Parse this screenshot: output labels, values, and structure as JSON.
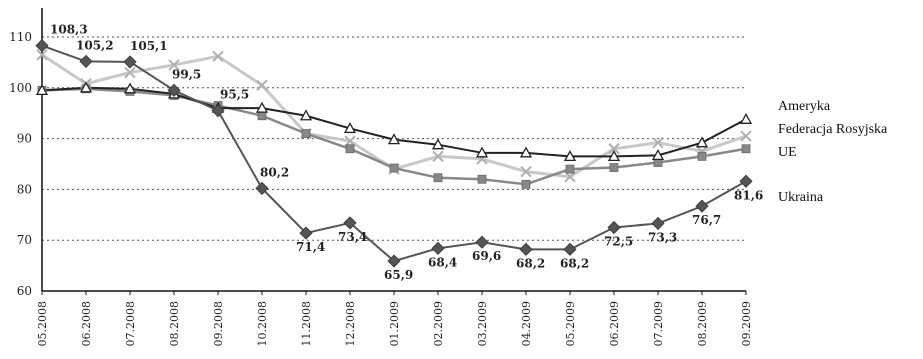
{
  "chart_data": {
    "type": "line",
    "title": "",
    "xlabel": "",
    "ylabel": "",
    "ylim": [
      60,
      115
    ],
    "yticks": [
      60,
      70,
      80,
      90,
      100,
      110
    ],
    "grid": "horizontal-dotted",
    "legend": "right",
    "categories": [
      "05.2008",
      "06.2008",
      "07.2008",
      "08.2008",
      "09.2008",
      "10.2008",
      "11.2008",
      "12.2008",
      "01.2009",
      "02.2009",
      "03.2009",
      "04.2009",
      "05.2009",
      "06.2009",
      "07.2009",
      "08.2009",
      "09.2009"
    ],
    "series": [
      {
        "name": "Ameryka",
        "color": "#222222",
        "marker": "triangle",
        "values": [
          99.5,
          100.0,
          99.8,
          98.8,
          96.0,
          96.0,
          94.5,
          92.0,
          89.8,
          88.8,
          87.2,
          87.2,
          86.5,
          86.5,
          86.7,
          89.2,
          93.8
        ]
      },
      {
        "name": "Federacja Rosyjska",
        "color": "#c8c8c8",
        "marker": "x",
        "values": [
          106.5,
          100.8,
          103.0,
          104.5,
          106.2,
          100.5,
          91.0,
          89.5,
          84.0,
          86.5,
          86.0,
          83.5,
          82.5,
          88.0,
          89.2,
          87.5,
          90.5
        ]
      },
      {
        "name": "UE",
        "color": "#888888",
        "marker": "square",
        "values": [
          99.5,
          99.8,
          99.3,
          98.5,
          96.5,
          94.5,
          91.0,
          88.0,
          84.2,
          82.3,
          82.0,
          81.0,
          84.0,
          84.3,
          85.3,
          86.5,
          88.0
        ]
      },
      {
        "name": "Ukraina",
        "color": "#555555",
        "marker": "diamond",
        "values": [
          108.3,
          105.2,
          105.1,
          99.5,
          95.5,
          80.2,
          71.4,
          73.4,
          65.9,
          68.4,
          69.6,
          68.2,
          68.2,
          72.5,
          73.3,
          76.7,
          81.6
        ],
        "labels": [
          "108,3",
          "105,2",
          "105,1",
          "99,5",
          "95,5",
          "80,2",
          "71,4",
          "73,4",
          "65,9",
          "68,4",
          "69,6",
          "68,2",
          "68,2",
          "72,5",
          "73,3",
          "76,7",
          "81,6"
        ]
      }
    ]
  }
}
